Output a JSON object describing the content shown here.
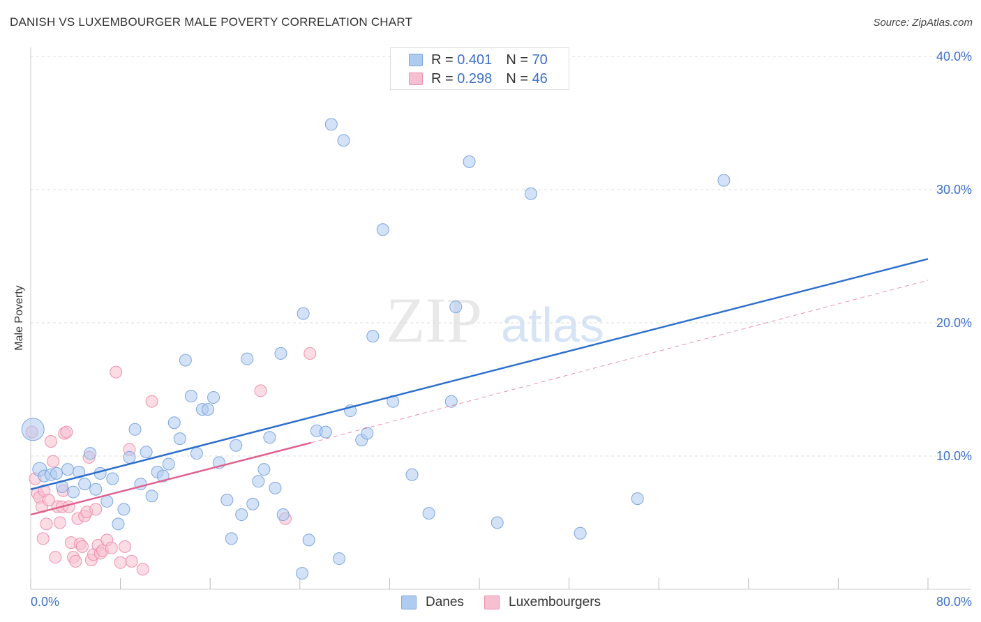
{
  "header": {
    "title": "DANISH VS LUXEMBOURGER MALE POVERTY CORRELATION CHART",
    "source": "Source: ZipAtlas.com"
  },
  "colors": {
    "danes_fill": "#aecbf0",
    "danes_stroke": "#7da6de",
    "danes_line": "#2d6fcc",
    "lux_fill": "#f7c0d0",
    "lux_stroke": "#ef90ae",
    "lux_line": "#e0608c",
    "grid": "#dddddd",
    "tick_text": "#3b6fc9"
  },
  "legend": {
    "danes": {
      "r_label": "R =",
      "r_value": "0.401",
      "n_label": "N =",
      "n_value": "70"
    },
    "lux": {
      "r_label": "R =",
      "r_value": "0.298",
      "n_label": "N =",
      "n_value": "46"
    }
  },
  "watermark": {
    "zip": "ZIP",
    "atlas": "atlas"
  },
  "chart_data": {
    "type": "scatter",
    "title": "DANISH VS LUXEMBOURGER MALE POVERTY CORRELATION CHART",
    "xlabel": "",
    "ylabel": "Male Poverty",
    "xlim": [
      0,
      80
    ],
    "ylim": [
      0,
      40
    ],
    "x_tick_labels": [
      "0.0%",
      "80.0%"
    ],
    "y_ticks": [
      10,
      20,
      30,
      40
    ],
    "y_tick_labels": [
      "10.0%",
      "20.0%",
      "30.0%",
      "40.0%"
    ],
    "grid": true,
    "legend_position": "top-center",
    "series": [
      {
        "name": "Danes",
        "r": 0.401,
        "n": 70,
        "trend": {
          "x": [
            0,
            80
          ],
          "y": [
            7.5,
            24.8
          ],
          "style": "solid"
        },
        "points": [
          [
            0.2,
            12.0
          ],
          [
            0.8,
            9.0
          ],
          [
            1.2,
            8.5
          ],
          [
            1.8,
            8.6
          ],
          [
            2.3,
            8.7
          ],
          [
            2.8,
            7.7
          ],
          [
            3.3,
            9.0
          ],
          [
            3.8,
            7.3
          ],
          [
            4.3,
            8.8
          ],
          [
            4.8,
            7.9
          ],
          [
            5.3,
            10.2
          ],
          [
            5.8,
            7.5
          ],
          [
            6.2,
            8.7
          ],
          [
            6.8,
            6.6
          ],
          [
            7.3,
            8.3
          ],
          [
            7.8,
            4.9
          ],
          [
            8.3,
            6.0
          ],
          [
            8.8,
            9.9
          ],
          [
            9.3,
            12.0
          ],
          [
            9.8,
            7.9
          ],
          [
            10.3,
            10.3
          ],
          [
            10.8,
            7.0
          ],
          [
            11.3,
            8.8
          ],
          [
            11.8,
            8.5
          ],
          [
            12.3,
            9.4
          ],
          [
            12.8,
            12.5
          ],
          [
            13.3,
            11.3
          ],
          [
            13.8,
            17.2
          ],
          [
            14.3,
            14.5
          ],
          [
            14.8,
            10.2
          ],
          [
            15.3,
            13.5
          ],
          [
            15.8,
            13.5
          ],
          [
            16.3,
            14.4
          ],
          [
            16.8,
            9.5
          ],
          [
            17.5,
            6.7
          ],
          [
            17.9,
            3.8
          ],
          [
            18.3,
            10.8
          ],
          [
            18.8,
            5.6
          ],
          [
            19.3,
            17.3
          ],
          [
            19.8,
            6.4
          ],
          [
            20.3,
            8.1
          ],
          [
            20.8,
            9.0
          ],
          [
            21.3,
            11.4
          ],
          [
            21.8,
            7.6
          ],
          [
            22.3,
            17.7
          ],
          [
            22.5,
            5.6
          ],
          [
            24.2,
            1.2
          ],
          [
            24.3,
            20.7
          ],
          [
            24.8,
            3.7
          ],
          [
            25.5,
            11.9
          ],
          [
            26.3,
            11.8
          ],
          [
            26.8,
            34.9
          ],
          [
            27.5,
            2.3
          ],
          [
            27.9,
            33.7
          ],
          [
            28.5,
            13.4
          ],
          [
            29.5,
            11.2
          ],
          [
            30.0,
            11.7
          ],
          [
            30.5,
            19.0
          ],
          [
            31.4,
            27.0
          ],
          [
            32.3,
            14.1
          ],
          [
            34.0,
            8.6
          ],
          [
            35.5,
            5.7
          ],
          [
            37.5,
            14.1
          ],
          [
            37.9,
            21.2
          ],
          [
            39.1,
            32.1
          ],
          [
            41.6,
            5.0
          ],
          [
            44.6,
            29.7
          ],
          [
            49.0,
            4.2
          ],
          [
            54.1,
            6.8
          ],
          [
            61.8,
            30.7
          ]
        ]
      },
      {
        "name": "Luxembourgers",
        "r": 0.298,
        "n": 46,
        "trend": {
          "x": [
            0,
            25
          ],
          "y": [
            5.6,
            11.0
          ],
          "style": "solid",
          "extension": {
            "x": [
              25,
              80
            ],
            "y": [
              11.0,
              23.2
            ],
            "style": "dashed"
          }
        },
        "points": [
          [
            0.1,
            11.8
          ],
          [
            0.4,
            8.3
          ],
          [
            0.6,
            7.2
          ],
          [
            0.8,
            6.9
          ],
          [
            1.0,
            6.2
          ],
          [
            1.2,
            7.4
          ],
          [
            1.4,
            4.9
          ],
          [
            1.6,
            6.7
          ],
          [
            1.8,
            11.1
          ],
          [
            2.0,
            9.6
          ],
          [
            2.2,
            2.4
          ],
          [
            2.4,
            6.2
          ],
          [
            2.6,
            5.0
          ],
          [
            2.8,
            6.2
          ],
          [
            3.0,
            11.7
          ],
          [
            3.2,
            11.8
          ],
          [
            3.4,
            6.2
          ],
          [
            3.6,
            3.5
          ],
          [
            3.8,
            2.4
          ],
          [
            4.0,
            2.1
          ],
          [
            4.2,
            5.3
          ],
          [
            4.4,
            3.4
          ],
          [
            4.6,
            3.2
          ],
          [
            4.8,
            5.5
          ],
          [
            5.0,
            5.8
          ],
          [
            5.2,
            9.9
          ],
          [
            5.4,
            2.2
          ],
          [
            5.6,
            2.6
          ],
          [
            5.8,
            6.0
          ],
          [
            6.0,
            3.3
          ],
          [
            6.2,
            2.7
          ],
          [
            6.4,
            2.9
          ],
          [
            6.8,
            3.7
          ],
          [
            7.2,
            3.1
          ],
          [
            7.6,
            16.3
          ],
          [
            8.0,
            2.0
          ],
          [
            8.4,
            3.2
          ],
          [
            8.8,
            10.5
          ],
          [
            9.0,
            2.1
          ],
          [
            10.0,
            1.5
          ],
          [
            10.8,
            14.1
          ],
          [
            20.5,
            14.9
          ],
          [
            22.7,
            5.3
          ],
          [
            24.9,
            17.7
          ],
          [
            1.1,
            3.8
          ],
          [
            2.9,
            7.4
          ]
        ]
      }
    ]
  },
  "bottom_legend": {
    "danes_label": "Danes",
    "lux_label": "Luxembourgers"
  }
}
